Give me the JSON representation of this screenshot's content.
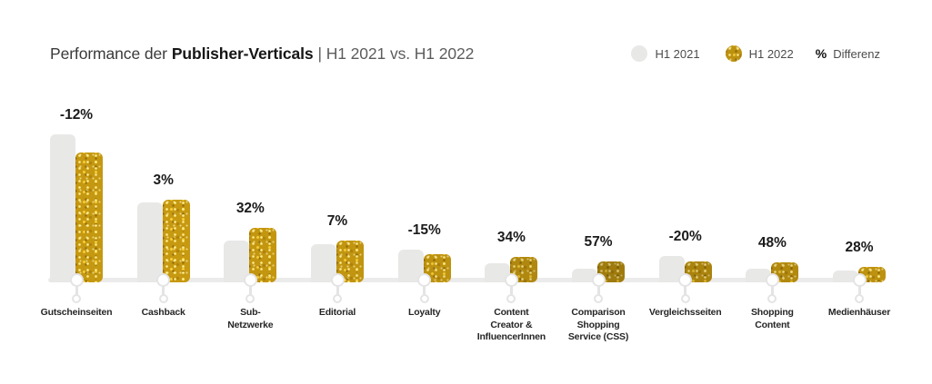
{
  "title": {
    "prefix": "Performance der",
    "bold": "Publisher-Verticals",
    "suffix": "| H1 2021 vs. H1 2022"
  },
  "legend": {
    "h1_2021_label": "H1 2021",
    "h1_2022_label": "H1 2022",
    "diff_symbol": "%",
    "diff_label": "Differenz"
  },
  "colors": {
    "h1_2021_bar": "#e8e8e7",
    "h1_2022_gold_base": "#bd9210",
    "baseline": "#ebebeb",
    "diff_text": "#1b1b1b"
  },
  "chart_data": {
    "type": "bar",
    "title": "Performance der Publisher-Verticals | H1 2021 vs. H1 2022",
    "categories": [
      "Gutscheinseiten",
      "Cashback",
      "Sub-Netzwerke",
      "Editorial",
      "Loyalty",
      "Content Creator & InfluencerInnen",
      "Comparison Shopping Service (CSS)",
      "Vergleichsseiten",
      "Shopping Content",
      "Medienhäuser"
    ],
    "category_label_lines": [
      "Gutscheinseiten",
      "Cashback",
      "Sub-\nNetzwerke",
      "Editorial",
      "Loyalty",
      "Content\nCreator &\nInfluencerInnen",
      "Comparison\nShopping\nService (CSS)",
      "Vergleichsseiten",
      "Shopping\nContent",
      "Medienhäuser"
    ],
    "series": [
      {
        "name": "H1 2021",
        "values": [
          100,
          54,
          28,
          26,
          22,
          13,
          9,
          18,
          9,
          8
        ]
      },
      {
        "name": "H1 2022",
        "values": [
          88,
          56,
          37,
          28,
          19,
          17.4,
          14.1,
          14.4,
          13.3,
          10.2
        ]
      }
    ],
    "diff_labels": [
      "-12%",
      "3%",
      "32%",
      "7%",
      "-15%",
      "34%",
      "57%",
      "-20%",
      "48%",
      "28%"
    ],
    "unit": "relative index, no numeric axis shown (H1 2021 Gutscheinseiten = 100)",
    "xlabel": "",
    "ylabel": "",
    "grid": false,
    "legend_position": "top-right",
    "legend_entries": [
      "H1 2021",
      "H1 2022",
      "% Differenz"
    ]
  }
}
